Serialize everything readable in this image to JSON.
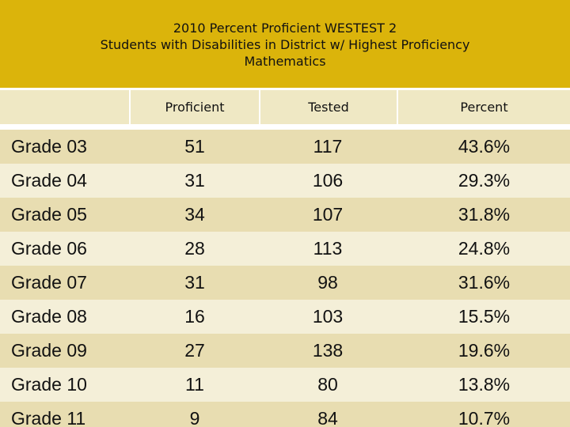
{
  "title": {
    "line1": "2010 Percent Proficient WESTEST 2",
    "line2": "Students with Disabilities in District w/ Highest Proficiency",
    "line3": "Mathematics"
  },
  "table": {
    "headers": [
      "",
      "Proficient",
      "Tested",
      "Percent"
    ],
    "rows": [
      {
        "grade": "Grade 03",
        "proficient": "51",
        "tested": "117",
        "percent": "43.6%"
      },
      {
        "grade": "Grade 04",
        "proficient": "31",
        "tested": "106",
        "percent": "29.3%"
      },
      {
        "grade": "Grade 05",
        "proficient": "34",
        "tested": "107",
        "percent": "31.8%"
      },
      {
        "grade": "Grade 06",
        "proficient": "28",
        "tested": "113",
        "percent": "24.8%"
      },
      {
        "grade": "Grade 07",
        "proficient": "31",
        "tested": "98",
        "percent": "31.6%"
      },
      {
        "grade": "Grade 08",
        "proficient": "16",
        "tested": "103",
        "percent": "15.5%"
      },
      {
        "grade": "Grade 09",
        "proficient": "27",
        "tested": "138",
        "percent": "19.6%"
      },
      {
        "grade": "Grade 10",
        "proficient": "11",
        "tested": "80",
        "percent": "13.8%"
      },
      {
        "grade": "Grade 11",
        "proficient": "9",
        "tested": "84",
        "percent": "10.7%"
      }
    ]
  },
  "colors": {
    "title_band": "#dbb40b",
    "header_fill": "#efe8c4",
    "row_dark": "#e8ddb1",
    "row_light": "#f4efd8"
  }
}
